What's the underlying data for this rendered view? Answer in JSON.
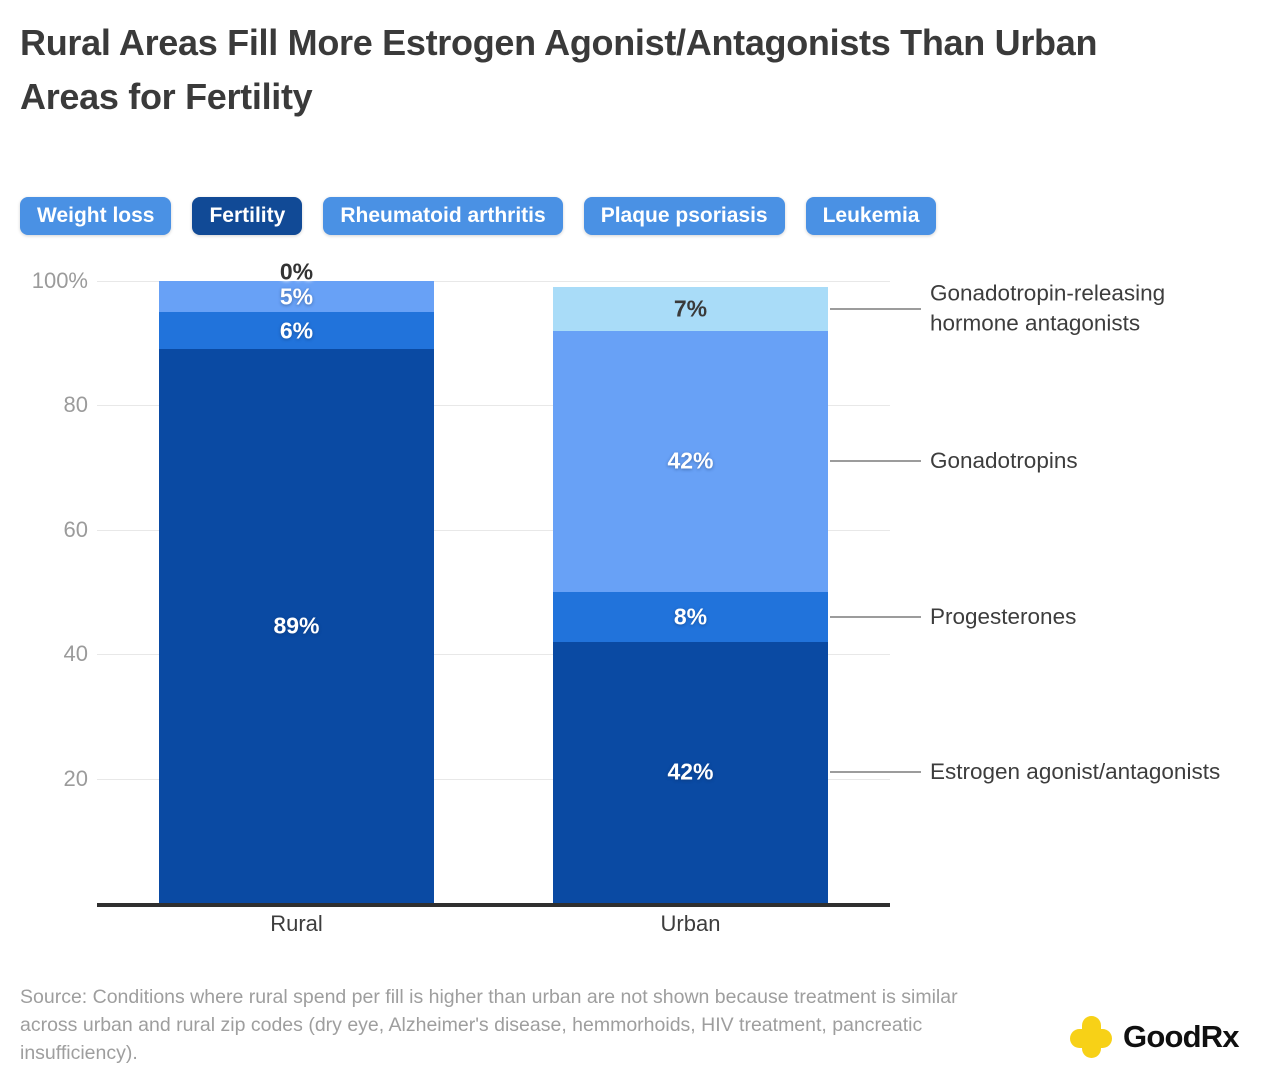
{
  "title": "Rural Areas Fill More Estrogen Agonist/Antagonists Than Urban Areas for Fertility",
  "tabs": [
    {
      "label": "Weight loss",
      "active": false
    },
    {
      "label": "Fertility",
      "active": true
    },
    {
      "label": "Rheumatoid arthritis",
      "active": false
    },
    {
      "label": "Plaque psoriasis",
      "active": false
    },
    {
      "label": "Leukemia",
      "active": false
    }
  ],
  "colors": {
    "tab": "#4a91e4",
    "tab_active": "#114a96",
    "grid": "#e8e8e8",
    "axis_tick_text": "#9b9b9b",
    "connector": "#9c9c9c",
    "logo_yellow": "#f7d117"
  },
  "chart_data": {
    "type": "bar",
    "stacked": true,
    "categories": [
      "Rural",
      "Urban"
    ],
    "series": [
      {
        "name": "Estrogen agonist/antagonists",
        "values": [
          89,
          42
        ],
        "color": "#0a4aa3"
      },
      {
        "name": "Progesterones",
        "values": [
          6,
          8
        ],
        "color": "#2173db"
      },
      {
        "name": "Gonadotropins",
        "values": [
          5,
          42
        ],
        "color": "#68a1f6"
      },
      {
        "name": "Gonadotropin-releasing hormone antagonists",
        "values": [
          0,
          7
        ],
        "color": "#a9dcf8"
      }
    ],
    "value_labels": [
      [
        "89%",
        "6%",
        "5%",
        "0%"
      ],
      [
        "42%",
        "8%",
        "42%",
        "7%"
      ]
    ],
    "title": "Rural Areas Fill More Estrogen Agonist/Antagonists Than Urban Areas for Fertility",
    "xlabel": "",
    "ylabel": "",
    "ylim": [
      0,
      100
    ],
    "y_ticks": [
      {
        "label": "100%",
        "value": 100
      },
      {
        "label": "80",
        "value": 80
      },
      {
        "label": "60",
        "value": 60
      },
      {
        "label": "40",
        "value": 40
      },
      {
        "label": "20",
        "value": 20
      }
    ],
    "grid": true,
    "legend_position": "right"
  },
  "source": "Source: Conditions where rural spend per fill is higher than urban are not shown because treatment is similar across urban and rural zip codes (dry eye, Alzheimer's disease, hemmorhoids, HIV treatment, pancreatic insufficiency).",
  "logo": {
    "text": "GoodRx",
    "plus_icon": "goodrx-plus-icon"
  }
}
